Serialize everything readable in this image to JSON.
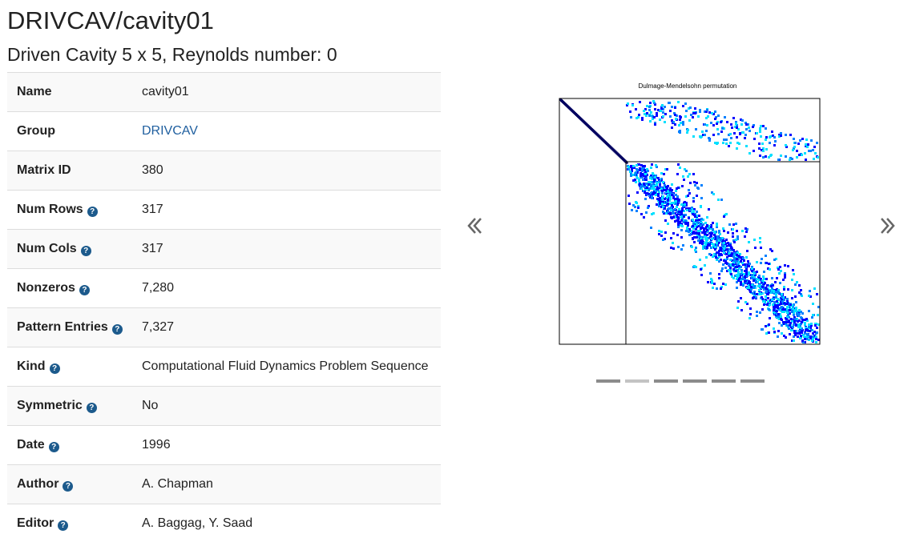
{
  "title": "DRIVCAV/cavity01",
  "subtitle": "Driven Cavity 5 x 5, Reynolds number: 0",
  "properties": [
    {
      "label": "Name",
      "value": "cavity01",
      "help": false,
      "link": false
    },
    {
      "label": "Group",
      "value": "DRIVCAV",
      "help": false,
      "link": true
    },
    {
      "label": "Matrix ID",
      "value": "380",
      "help": false,
      "link": false
    },
    {
      "label": "Num Rows",
      "value": "317",
      "help": true,
      "link": false
    },
    {
      "label": "Num Cols",
      "value": "317",
      "help": true,
      "link": false
    },
    {
      "label": "Nonzeros",
      "value": "7,280",
      "help": true,
      "link": false
    },
    {
      "label": "Pattern Entries",
      "value": "7,327",
      "help": true,
      "link": false
    },
    {
      "label": "Kind",
      "value": "Computational Fluid Dynamics Problem Sequence",
      "help": true,
      "link": false
    },
    {
      "label": "Symmetric",
      "value": "No",
      "help": true,
      "link": false
    },
    {
      "label": "Date",
      "value": "1996",
      "help": true,
      "link": false
    },
    {
      "label": "Author",
      "value": "A. Chapman",
      "help": true,
      "link": false
    },
    {
      "label": "Editor",
      "value": "A. Baggag, Y. Saad",
      "help": true,
      "link": false
    }
  ],
  "carousel": {
    "image_title": "Dulmage-Mendelsohn permutation",
    "slide_count": 6,
    "active_index": 1,
    "prev_icon": "chevron-double-left-icon",
    "next_icon": "chevron-double-right-icon"
  },
  "colors": {
    "link": "#1f5f9f",
    "help_icon": "#1c5a8c",
    "spy_dark": "#0000ff",
    "spy_mid": "#0080ff",
    "spy_light": "#00e0ff",
    "spy_diag": "#000060"
  }
}
